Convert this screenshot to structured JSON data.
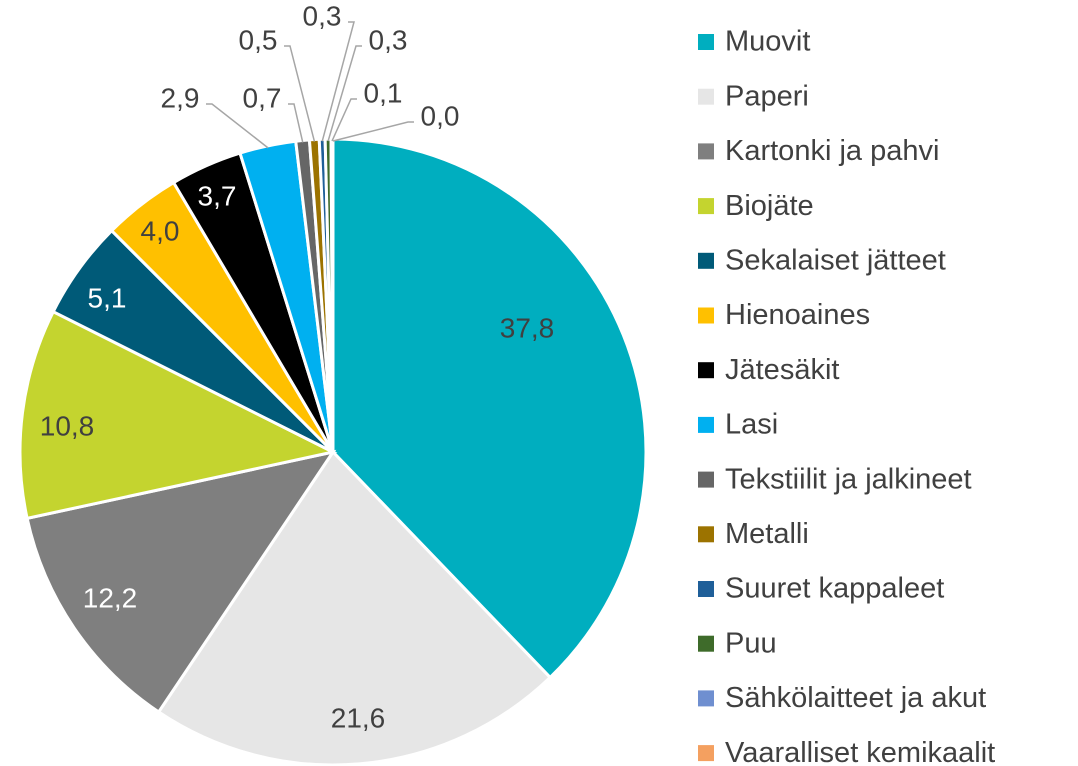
{
  "chart_data": {
    "type": "pie",
    "categories": [
      "Muovit",
      "Paperi",
      "Kartonki ja pahvi",
      "Biojäte",
      "Sekalaiset jätteet",
      "Hienoaines",
      "Jätesäkit",
      "Lasi",
      "Tekstiilit ja jalkineet",
      "Metalli",
      "Suuret kappaleet",
      "Puu",
      "Sähkölaitteet ja akut",
      "Vaaralliset kemikaalit"
    ],
    "values": [
      37.8,
      21.6,
      12.2,
      10.8,
      5.1,
      4.0,
      3.7,
      2.9,
      0.7,
      0.5,
      0.3,
      0.3,
      0.1,
      0.0
    ],
    "value_labels": [
      "37,8",
      "21,6",
      "12,2",
      "10,8",
      "5,1",
      "4,0",
      "3,7",
      "2,9",
      "0,7",
      "0,5",
      "0,3",
      "0,3",
      "0,1",
      "0,0"
    ],
    "colors": [
      "#00aebf",
      "#e6e6e6",
      "#7f7f7f",
      "#c4d42f",
      "#005a78",
      "#ffc000",
      "#000000",
      "#00b0f0",
      "#666666",
      "#9c7300",
      "#1f5f99",
      "#3e6b2a",
      "#6f8fd0",
      "#f4a060"
    ],
    "legend": "right"
  }
}
